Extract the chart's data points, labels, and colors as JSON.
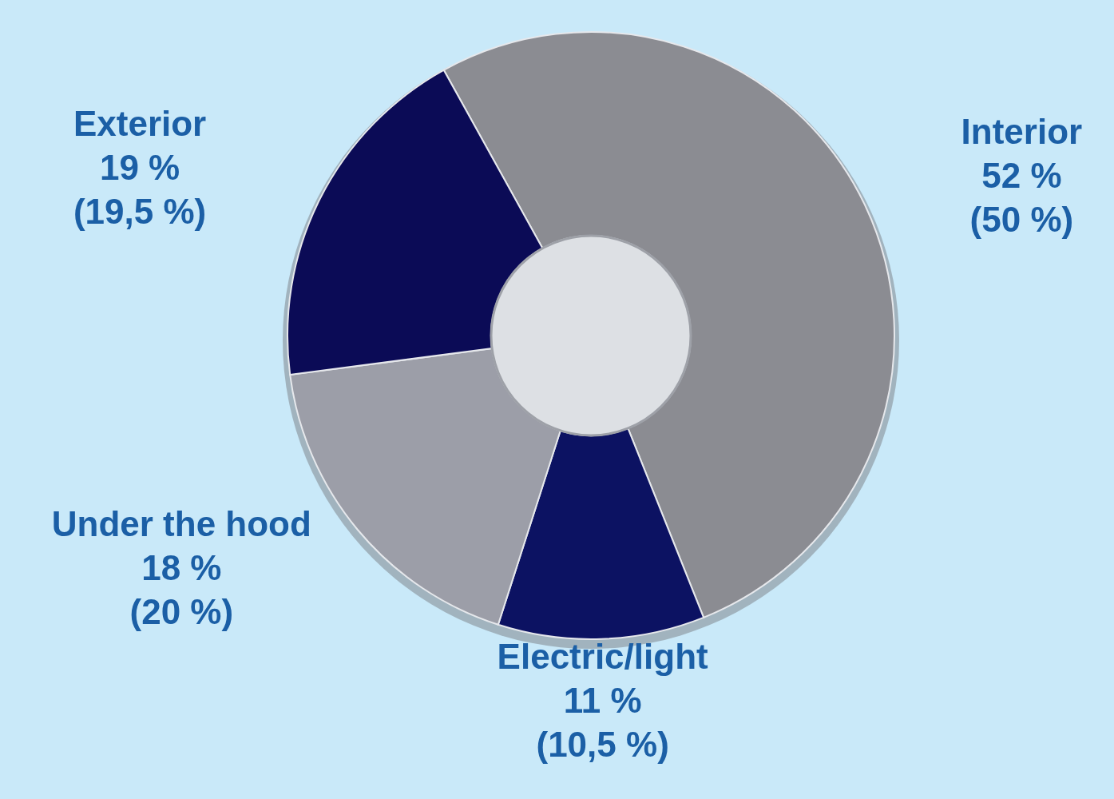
{
  "chart_data": {
    "type": "donut",
    "categories": [
      "Interior",
      "Electric/light",
      "Under the hood",
      "Exterior"
    ],
    "values": [
      52,
      11,
      18,
      19
    ],
    "colors": [
      "#8b8c92",
      "#0c1262",
      "#9c9ea8",
      "#0b0b56"
    ],
    "value_labels": [
      "52 %\n(50 %)",
      "11 %\n(10,5 %)",
      "18 %\n(20 %)",
      "19 %\n(19,5 %)"
    ]
  }
}
